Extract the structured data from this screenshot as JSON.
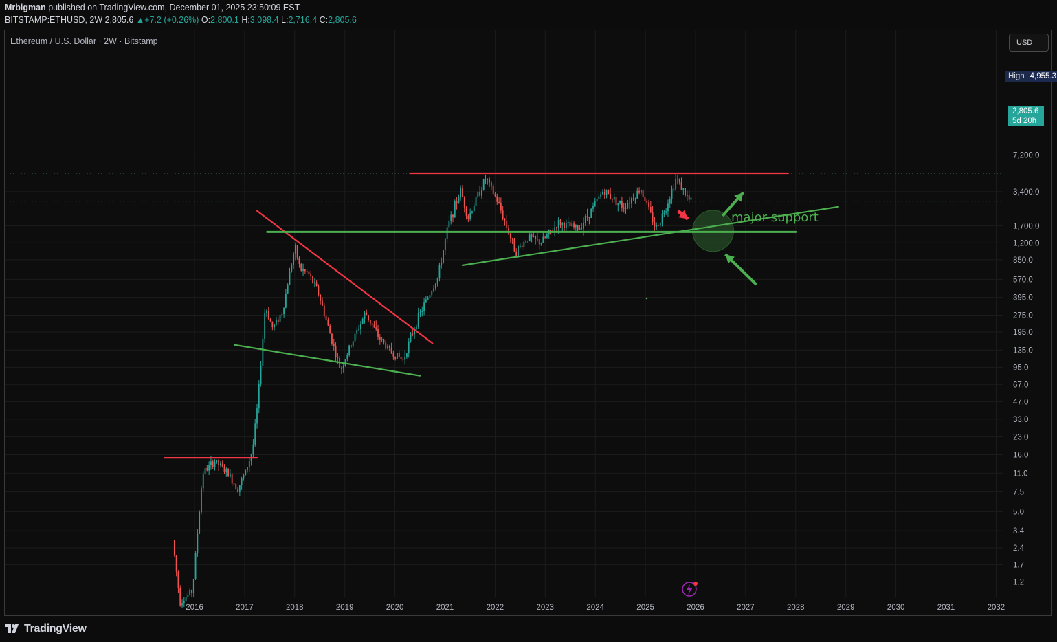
{
  "header": {
    "author": "Mrbigman",
    "published_text": "published on TradingView.com, December 01, 2025 23:50:09 EST",
    "symbol": "BITSTAMP:ETHUSD, 2W",
    "last": "2,805.6",
    "change": "+7.2 (+0.26%)",
    "o_label": "O:",
    "o_value": "2,800.1",
    "h_label": "H:",
    "h_value": "3,098.4",
    "l_label": "L:",
    "l_value": "2,716.4",
    "c_label": "C:",
    "c_value": "2,805.6"
  },
  "legend_title": "Ethereum / U.S. Dollar · 2W · Bitstamp",
  "currency_button": "USD",
  "price_tags": {
    "high_label": "High",
    "high_value": "4,955.3",
    "last_value": "2,805.6",
    "countdown": "5d 20h"
  },
  "annotation_text": "major support",
  "brand": "TradingView",
  "colors": {
    "up": "#26a69a",
    "down": "#ef5350",
    "drawing_red": "#f23645",
    "drawing_green": "#4caf50",
    "annotation_green": "#4caf50",
    "background": "#0d0d0d",
    "grid": "#1c1c1c"
  },
  "chart_data": {
    "type": "candlestick",
    "symbol": "BITSTAMP:ETHUSD",
    "interval": "2W",
    "scale": "log",
    "x_tick_labels": [
      "2016",
      "2017",
      "2018",
      "2019",
      "2020",
      "2021",
      "2022",
      "2023",
      "2024",
      "2025",
      "2026",
      "2027",
      "2028",
      "2029",
      "2030",
      "2031",
      "2032"
    ],
    "y_tick_labels": [
      "7,200.0",
      "3,400.0",
      "1,700.0",
      "1,200.0",
      "850.0",
      "570.0",
      "395.0",
      "275.0",
      "195.0",
      "135.0",
      "95.0",
      "67.0",
      "47.0",
      "33.0",
      "23.0",
      "16.0",
      "11.0",
      "7.5",
      "5.0",
      "3.4",
      "2.4",
      "1.7",
      "1.2"
    ],
    "y_tick_values": [
      7200,
      3400,
      1700,
      1200,
      850,
      570,
      395,
      275,
      195,
      135,
      95,
      67,
      47,
      33,
      23,
      16,
      11,
      7.5,
      5,
      3.4,
      2.4,
      1.7,
      1.2
    ],
    "grid": true,
    "price_anchors": [
      {
        "date": 2015.6,
        "price": 2.8
      },
      {
        "date": 2015.75,
        "price": 0.8
      },
      {
        "date": 2016.0,
        "price": 1.0
      },
      {
        "date": 2016.2,
        "price": 11
      },
      {
        "date": 2016.45,
        "price": 14
      },
      {
        "date": 2016.7,
        "price": 11
      },
      {
        "date": 2016.9,
        "price": 8
      },
      {
        "date": 2017.05,
        "price": 11
      },
      {
        "date": 2017.2,
        "price": 18
      },
      {
        "date": 2017.3,
        "price": 45
      },
      {
        "date": 2017.45,
        "price": 330
      },
      {
        "date": 2017.6,
        "price": 210
      },
      {
        "date": 2017.8,
        "price": 300
      },
      {
        "date": 2017.95,
        "price": 700
      },
      {
        "date": 2018.04,
        "price": 1100
      },
      {
        "date": 2018.15,
        "price": 700
      },
      {
        "date": 2018.3,
        "price": 650
      },
      {
        "date": 2018.5,
        "price": 450
      },
      {
        "date": 2018.7,
        "price": 220
      },
      {
        "date": 2018.95,
        "price": 90
      },
      {
        "date": 2019.1,
        "price": 130
      },
      {
        "date": 2019.45,
        "price": 290
      },
      {
        "date": 2019.7,
        "price": 180
      },
      {
        "date": 2019.95,
        "price": 130
      },
      {
        "date": 2020.2,
        "price": 110
      },
      {
        "date": 2020.45,
        "price": 230
      },
      {
        "date": 2020.65,
        "price": 360
      },
      {
        "date": 2020.9,
        "price": 600
      },
      {
        "date": 2021.1,
        "price": 1700
      },
      {
        "date": 2021.35,
        "price": 3500
      },
      {
        "date": 2021.5,
        "price": 2000
      },
      {
        "date": 2021.85,
        "price": 4500
      },
      {
        "date": 2022.1,
        "price": 2700
      },
      {
        "date": 2022.45,
        "price": 1000
      },
      {
        "date": 2022.7,
        "price": 1350
      },
      {
        "date": 2022.95,
        "price": 1200
      },
      {
        "date": 2023.3,
        "price": 1800
      },
      {
        "date": 2023.7,
        "price": 1600
      },
      {
        "date": 2023.95,
        "price": 2300
      },
      {
        "date": 2024.2,
        "price": 3500
      },
      {
        "date": 2024.6,
        "price": 2500
      },
      {
        "date": 2024.95,
        "price": 3600
      },
      {
        "date": 2025.25,
        "price": 1600
      },
      {
        "date": 2025.45,
        "price": 2500
      },
      {
        "date": 2025.65,
        "price": 4500
      },
      {
        "date": 2025.92,
        "price": 2805.6
      }
    ],
    "high": 4955.3,
    "last": 2805.6,
    "drawings": [
      {
        "kind": "horizontal",
        "color": "red",
        "from": 2015.4,
        "to": 2017.25,
        "price": 15
      },
      {
        "kind": "trend",
        "color": "red",
        "from": [
          2017.25,
          2300
        ],
        "to": [
          2020.75,
          155
        ]
      },
      {
        "kind": "trend",
        "color": "green",
        "from": [
          2016.8,
          150
        ],
        "to": [
          2020.5,
          80
        ]
      },
      {
        "kind": "horizontal",
        "color": "green",
        "from": 2017.45,
        "to": 2028.0,
        "price": 1500
      },
      {
        "kind": "trend",
        "color": "green",
        "from": [
          2021.35,
          760
        ],
        "to": [
          2028.85,
          2500
        ]
      },
      {
        "kind": "horizontal",
        "color": "red",
        "from": 2020.3,
        "to": 2027.85,
        "price": 4955
      }
    ]
  }
}
